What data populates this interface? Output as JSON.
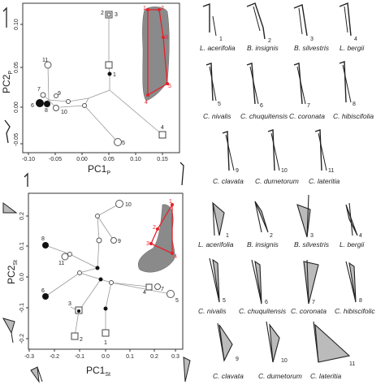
{
  "top_plot": {
    "xlabel_main": "PC1",
    "xlabel_sub": "P",
    "ylabel_main": "PC2",
    "ylabel_sub": "P",
    "xticks": [
      "-0.10",
      "-0.05",
      "0.00",
      "0.05",
      "0.10",
      "0.15"
    ],
    "yticks": [
      "0.10",
      "0.05",
      "0.00",
      "-0.05"
    ],
    "landmark_numbers": [
      "1",
      "2",
      "3",
      "4",
      "5"
    ],
    "point_labels": [
      "1",
      "2",
      "3",
      "4",
      "5",
      "6",
      "7",
      "8",
      "9",
      "10",
      "11"
    ]
  },
  "bottom_plot": {
    "xlabel_main": "PC1",
    "xlabel_sub": "St",
    "ylabel_main": "PC2",
    "ylabel_sub": "St",
    "xticks": [
      "-0.3",
      "-0.2",
      "-0.1",
      "0.0",
      "0.1",
      "0.2",
      "0.3"
    ],
    "yticks": [
      "0.2",
      "0.1",
      "0.0",
      "-0.1",
      "-0.2"
    ],
    "landmark_numbers": [
      "1",
      "2",
      "3",
      "4"
    ],
    "point_labels": [
      "1",
      "2",
      "3",
      "4",
      "5",
      "6",
      "7",
      "8",
      "9",
      "10",
      "11"
    ]
  },
  "species_top": [
    {
      "name": "L. acerifolia",
      "num": "1"
    },
    {
      "name": "B. insignis",
      "num": "2"
    },
    {
      "name": "B. silvestris",
      "num": "3"
    },
    {
      "name": "L. bergii",
      "num": "4"
    },
    {
      "name": "C. nivalis",
      "num": "5"
    },
    {
      "name": "C. chuquitensis",
      "num": "6"
    },
    {
      "name": "C. coronata",
      "num": "7"
    },
    {
      "name": "C. hibiscifolia",
      "num": "8"
    },
    {
      "name": "C. clavata",
      "num": "9"
    },
    {
      "name": "C. dumetorum",
      "num": "10"
    },
    {
      "name": "C. lateritia",
      "num": "11"
    }
  ],
  "species_bottom": [
    {
      "name": "L. acerifolia",
      "num": "1"
    },
    {
      "name": "B. insignis",
      "num": "2"
    },
    {
      "name": "B. silvestris",
      "num": "3"
    },
    {
      "name": "L. bergii",
      "num": "4"
    },
    {
      "name": "C. nivalis",
      "num": "5"
    },
    {
      "name": "C. chuquitensis",
      "num": "6"
    },
    {
      "name": "C. coronata",
      "num": "7"
    },
    {
      "name": "C. hibiscifolic",
      "num": "8"
    },
    {
      "name": "C. clavata",
      "num": "9"
    },
    {
      "name": "C. dumetorum",
      "num": "10"
    },
    {
      "name": "C. lateritia",
      "num": "11"
    }
  ],
  "colors": {
    "landmark": "#e8202a",
    "structure": "#8a8a8a",
    "line": "#999999"
  }
}
